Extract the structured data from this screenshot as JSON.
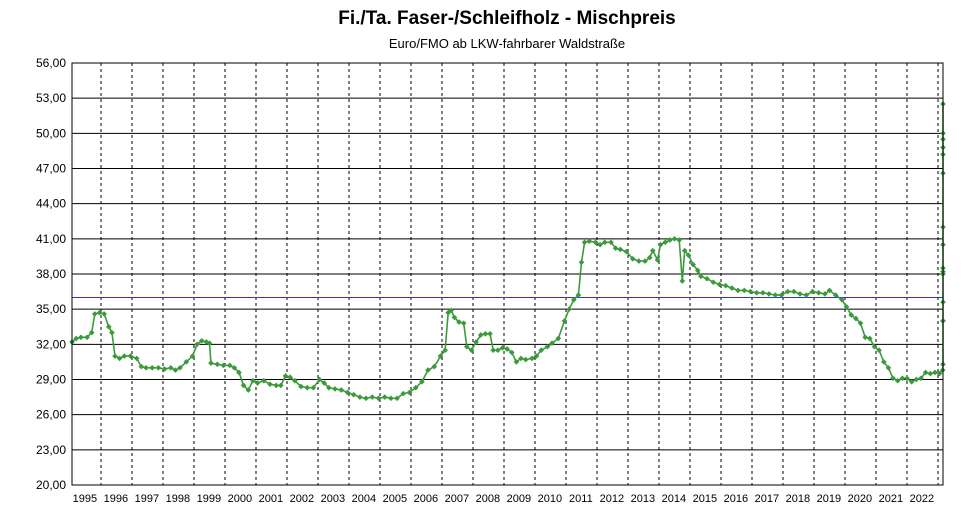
{
  "chart_data": {
    "type": "line",
    "title": "Fi./Ta. Faser-/Schleifholz - Mischpreis",
    "subtitle": "Euro/FMO ab LKW-fahrbarer Waldstraße",
    "xlabel": "",
    "ylabel": "",
    "ylim": [
      20,
      56
    ],
    "y_ticks": [
      "56,00",
      "53,00",
      "50,00",
      "47,00",
      "44,00",
      "41,00",
      "38,00",
      "35,00",
      "32,00",
      "29,00",
      "26,00",
      "23,00",
      "20,00"
    ],
    "x_ticks": [
      "1995",
      "1996",
      "1997",
      "1998",
      "1999",
      "2000",
      "2001",
      "2002",
      "2003",
      "2004",
      "2005",
      "2006",
      "2007",
      "2008",
      "2009",
      "2010",
      "2011",
      "2012",
      "2013",
      "2014",
      "2015",
      "2016",
      "2017",
      "2018",
      "2019",
      "2020",
      "2021",
      "2022"
    ],
    "reference_line": 36.0,
    "colors": {
      "series": "#3c9a3c",
      "reference": "#3333cc",
      "grid": "#000000"
    },
    "grid": true,
    "series": [
      {
        "points": [
          [
            1994.6,
            32.2
          ],
          [
            1994.75,
            32.5
          ],
          [
            1994.9,
            32.6
          ],
          [
            1995.1,
            32.6
          ],
          [
            1995.25,
            33.0
          ],
          [
            1995.35,
            34.6
          ],
          [
            1995.5,
            34.7
          ],
          [
            1995.65,
            34.6
          ],
          [
            1995.8,
            33.5
          ],
          [
            1995.9,
            33.0
          ],
          [
            1996.0,
            31.0
          ],
          [
            1996.15,
            30.8
          ],
          [
            1996.3,
            31.0
          ],
          [
            1996.5,
            31.0
          ],
          [
            1996.7,
            30.8
          ],
          [
            1996.85,
            30.1
          ],
          [
            1997.0,
            30.0
          ],
          [
            1997.2,
            30.0
          ],
          [
            1997.4,
            30.0
          ],
          [
            1997.6,
            29.9
          ],
          [
            1997.8,
            30.0
          ],
          [
            1997.95,
            29.8
          ],
          [
            1998.1,
            30.0
          ],
          [
            1998.3,
            30.5
          ],
          [
            1998.5,
            31.0
          ],
          [
            1998.65,
            32.0
          ],
          [
            1998.8,
            32.3
          ],
          [
            1998.95,
            32.2
          ],
          [
            1999.05,
            32.1
          ],
          [
            1999.1,
            30.4
          ],
          [
            1999.3,
            30.3
          ],
          [
            1999.5,
            30.2
          ],
          [
            1999.7,
            30.2
          ],
          [
            1999.85,
            30.0
          ],
          [
            2000.0,
            29.6
          ],
          [
            2000.15,
            28.5
          ],
          [
            2000.3,
            28.1
          ],
          [
            2000.45,
            28.9
          ],
          [
            2000.6,
            28.7
          ],
          [
            2000.8,
            28.9
          ],
          [
            2001.0,
            28.6
          ],
          [
            2001.2,
            28.5
          ],
          [
            2001.35,
            28.5
          ],
          [
            2001.5,
            29.3
          ],
          [
            2001.65,
            29.2
          ],
          [
            2001.8,
            28.9
          ],
          [
            2002.0,
            28.4
          ],
          [
            2002.2,
            28.3
          ],
          [
            2002.4,
            28.3
          ],
          [
            2002.6,
            29.0
          ],
          [
            2002.75,
            28.7
          ],
          [
            2002.9,
            28.3
          ],
          [
            2003.1,
            28.2
          ],
          [
            2003.3,
            28.1
          ],
          [
            2003.5,
            27.9
          ],
          [
            2003.7,
            27.7
          ],
          [
            2003.9,
            27.5
          ],
          [
            2004.1,
            27.4
          ],
          [
            2004.3,
            27.5
          ],
          [
            2004.5,
            27.4
          ],
          [
            2004.7,
            27.5
          ],
          [
            2004.9,
            27.4
          ],
          [
            2005.1,
            27.4
          ],
          [
            2005.3,
            27.8
          ],
          [
            2005.5,
            27.9
          ],
          [
            2005.7,
            28.3
          ],
          [
            2005.9,
            28.8
          ],
          [
            2006.1,
            29.8
          ],
          [
            2006.3,
            30.1
          ],
          [
            2006.5,
            31.0
          ],
          [
            2006.65,
            31.5
          ],
          [
            2006.75,
            34.7
          ],
          [
            2006.85,
            34.9
          ],
          [
            2006.95,
            34.3
          ],
          [
            2007.1,
            33.9
          ],
          [
            2007.25,
            33.8
          ],
          [
            2007.35,
            31.8
          ],
          [
            2007.5,
            31.5
          ],
          [
            2007.65,
            32.2
          ],
          [
            2007.8,
            32.8
          ],
          [
            2007.95,
            32.9
          ],
          [
            2008.1,
            32.9
          ],
          [
            2008.2,
            31.5
          ],
          [
            2008.35,
            31.5
          ],
          [
            2008.5,
            31.7
          ],
          [
            2008.65,
            31.6
          ],
          [
            2008.8,
            31.3
          ],
          [
            2008.95,
            30.5
          ],
          [
            2009.1,
            30.8
          ],
          [
            2009.25,
            30.7
          ],
          [
            2009.45,
            30.8
          ],
          [
            2009.6,
            31.0
          ],
          [
            2009.75,
            31.5
          ],
          [
            2009.95,
            31.8
          ],
          [
            2010.1,
            32.1
          ],
          [
            2010.3,
            32.5
          ],
          [
            2010.5,
            34.0
          ],
          [
            2010.65,
            35.0
          ],
          [
            2010.8,
            35.8
          ],
          [
            2010.95,
            36.2
          ],
          [
            2011.05,
            39.0
          ],
          [
            2011.15,
            40.7
          ],
          [
            2011.3,
            40.8
          ],
          [
            2011.5,
            40.7
          ],
          [
            2011.65,
            40.5
          ],
          [
            2011.8,
            40.7
          ],
          [
            2012.0,
            40.7
          ],
          [
            2012.15,
            40.2
          ],
          [
            2012.3,
            40.1
          ],
          [
            2012.5,
            39.9
          ],
          [
            2012.7,
            39.3
          ],
          [
            2012.9,
            39.1
          ],
          [
            2013.1,
            39.1
          ],
          [
            2013.25,
            39.4
          ],
          [
            2013.35,
            40.0
          ],
          [
            2013.5,
            39.2
          ],
          [
            2013.6,
            40.5
          ],
          [
            2013.75,
            40.7
          ],
          [
            2013.9,
            40.9
          ],
          [
            2014.05,
            41.0
          ],
          [
            2014.2,
            40.9
          ],
          [
            2014.3,
            37.4
          ],
          [
            2014.38,
            40.0
          ],
          [
            2014.5,
            39.6
          ],
          [
            2014.65,
            38.8
          ],
          [
            2014.8,
            38.3
          ],
          [
            2014.9,
            37.8
          ],
          [
            2015.1,
            37.6
          ],
          [
            2015.3,
            37.3
          ],
          [
            2015.5,
            37.1
          ],
          [
            2015.7,
            37.0
          ],
          [
            2015.9,
            36.8
          ],
          [
            2016.1,
            36.6
          ],
          [
            2016.3,
            36.6
          ],
          [
            2016.5,
            36.5
          ],
          [
            2016.7,
            36.4
          ],
          [
            2016.9,
            36.4
          ],
          [
            2017.1,
            36.3
          ],
          [
            2017.3,
            36.2
          ],
          [
            2017.5,
            36.2
          ],
          [
            2017.7,
            36.5
          ],
          [
            2017.9,
            36.5
          ],
          [
            2018.1,
            36.3
          ],
          [
            2018.3,
            36.2
          ],
          [
            2018.5,
            36.5
          ],
          [
            2018.7,
            36.4
          ],
          [
            2018.9,
            36.3
          ],
          [
            2019.05,
            36.6
          ],
          [
            2019.25,
            36.2
          ],
          [
            2019.45,
            35.8
          ],
          [
            2019.6,
            35.2
          ],
          [
            2019.75,
            34.5
          ],
          [
            2019.9,
            34.2
          ],
          [
            2020.05,
            33.8
          ],
          [
            2020.2,
            32.6
          ],
          [
            2020.35,
            32.5
          ],
          [
            2020.5,
            31.8
          ],
          [
            2020.65,
            31.5
          ],
          [
            2020.8,
            30.5
          ],
          [
            2020.95,
            30.0
          ],
          [
            2021.1,
            29.1
          ],
          [
            2021.25,
            28.9
          ],
          [
            2021.4,
            29.1
          ],
          [
            2021.55,
            29.1
          ],
          [
            2021.7,
            28.8
          ],
          [
            2021.85,
            29.0
          ],
          [
            2022.0,
            29.1
          ],
          [
            2022.15,
            29.6
          ],
          [
            2022.3,
            29.5
          ],
          [
            2022.45,
            29.6
          ],
          [
            2022.6,
            29.5
          ],
          [
            2022.7,
            29.8
          ],
          [
            2022.8,
            30.3
          ],
          [
            2022.9,
            34.0
          ],
          [
            2023.0,
            34.0
          ],
          [
            2023.1,
            35.6
          ],
          [
            2023.2,
            38.0
          ],
          [
            2023.3,
            38.5
          ],
          [
            2023.42,
            38.2
          ],
          [
            2023.55,
            40.5
          ],
          [
            2023.7,
            42.0
          ],
          [
            2023.8,
            46.6
          ],
          [
            2023.9,
            48.2
          ],
          [
            2024.0,
            48.8
          ],
          [
            2024.1,
            49.5
          ],
          [
            2024.2,
            50.0
          ],
          [
            2024.3,
            52.5
          ]
        ]
      }
    ]
  }
}
